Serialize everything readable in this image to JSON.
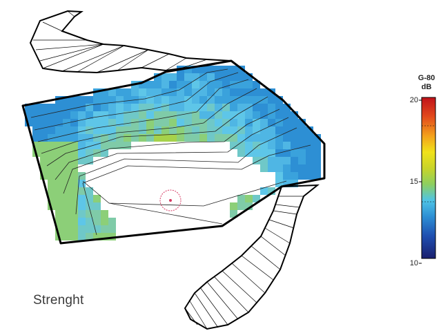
{
  "map": {
    "label": "Strenght"
  },
  "scale": {
    "metric": "G-80",
    "unit": "dB",
    "ticks": [
      {
        "value": 20,
        "label": "20"
      },
      {
        "value": 15,
        "label": "15"
      },
      {
        "value": 10,
        "label": "10"
      }
    ],
    "range": [
      10,
      20
    ],
    "colors": [
      "#1a1f6e",
      "#1f4fb0",
      "#2d8fd4",
      "#4fc4e6",
      "#8ccf60",
      "#c8d42a",
      "#f0e21a",
      "#f3a21c",
      "#e24a1c",
      "#c0121a"
    ]
  },
  "colors": {
    "outline": "#000000",
    "contour": "#222222",
    "marker": "#d63a63"
  }
}
